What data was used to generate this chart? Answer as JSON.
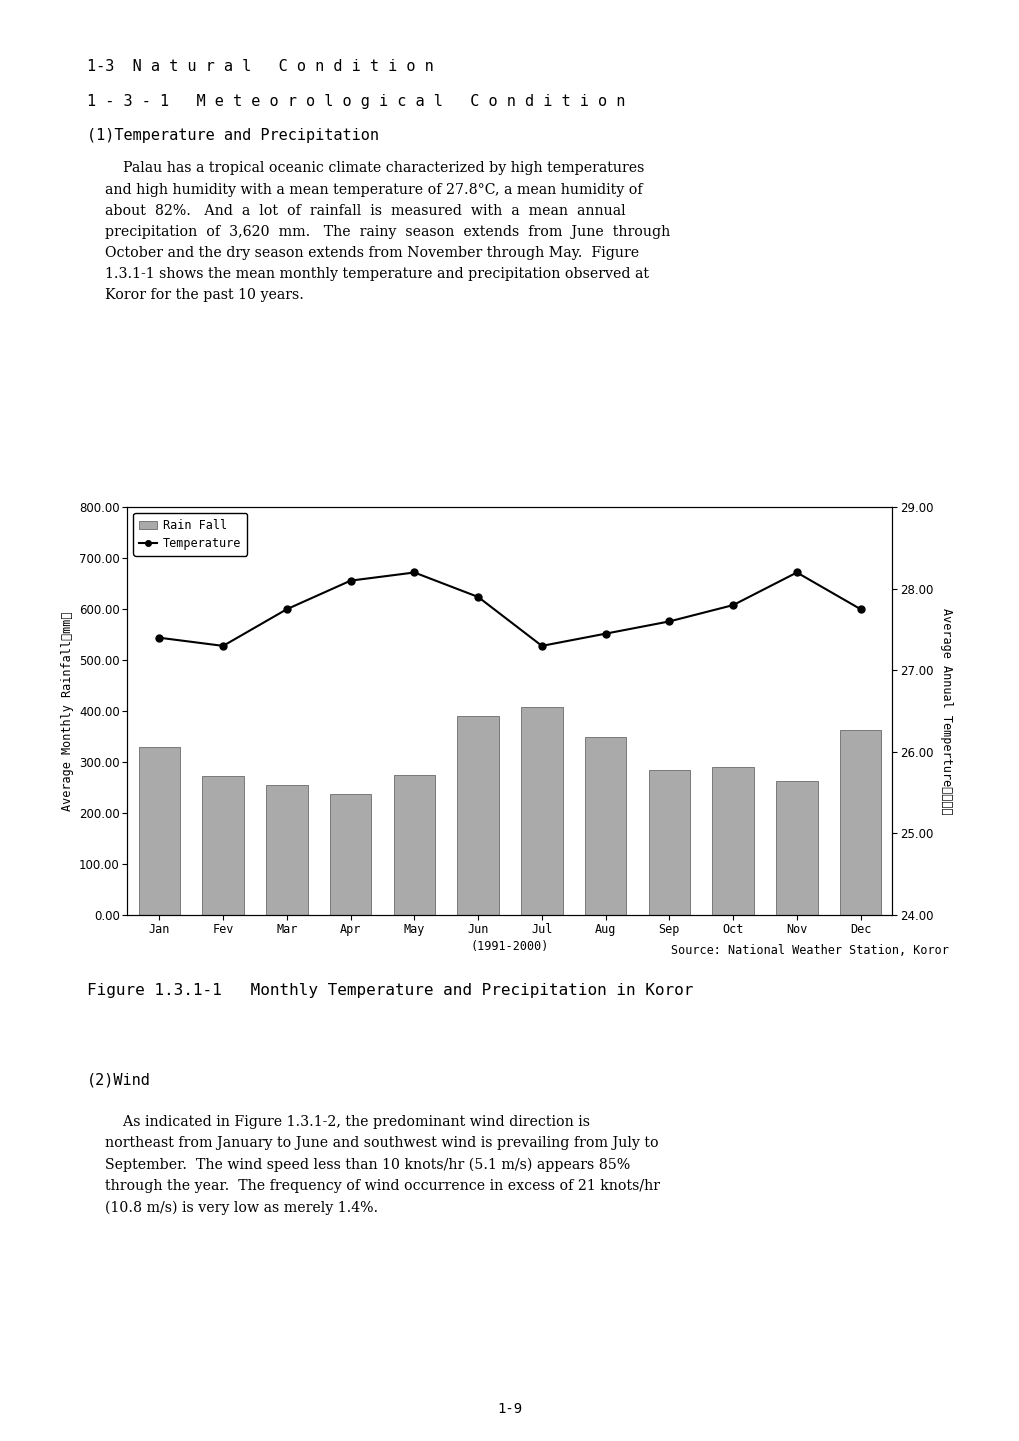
{
  "months": [
    "Jan",
    "Fev",
    "Mar",
    "Apr",
    "May",
    "Jun",
    "Jul",
    "Aug",
    "Sep",
    "Oct",
    "Nov",
    "Dec"
  ],
  "xlabel": "(1991-2000)",
  "rainfall": [
    330,
    272,
    255,
    238,
    275,
    390,
    408,
    350,
    285,
    290,
    263,
    363
  ],
  "temperature": [
    27.4,
    27.3,
    27.75,
    28.1,
    28.2,
    27.9,
    27.3,
    27.45,
    27.6,
    27.8,
    28.2,
    27.75
  ],
  "bar_color": "#aaaaaa",
  "bar_edge_color": "#555555",
  "line_color": "#000000",
  "marker_style": "o",
  "marker_size": 5,
  "left_ylabel": "Average Monthly Rainfall（mm）",
  "right_ylabel": "Average Annual Temperture",
  "right_ylabel2": "（℃）",
  "left_ylim": [
    0,
    800
  ],
  "left_yticks": [
    0.0,
    100.0,
    200.0,
    300.0,
    400.0,
    500.0,
    600.0,
    700.0,
    800.0
  ],
  "right_ylim": [
    24,
    29
  ],
  "right_yticks": [
    24.0,
    25.0,
    26.0,
    27.0,
    28.0,
    29.0
  ],
  "legend_rainfall": "Rain Fall",
  "legend_temperature": "Temperature",
  "source_text": "Source: National Weather Station, Koror",
  "figure_caption": "Figure 1.3.1-1   Monthly Temperature and Precipitation in Koror",
  "heading1": "1-3  N a t u r a l   C o n d i t i o n",
  "heading2": "1 - 3 - 1   M e t e o r o l o g i c a l   C o n d i t i o n",
  "heading3": "(1)Temperature and Precipitation",
  "heading_wind": "(2)Wind",
  "page_number": "1-9",
  "background_color": "#ffffff",
  "fig_width": 10.2,
  "fig_height": 14.41,
  "dpi": 100
}
